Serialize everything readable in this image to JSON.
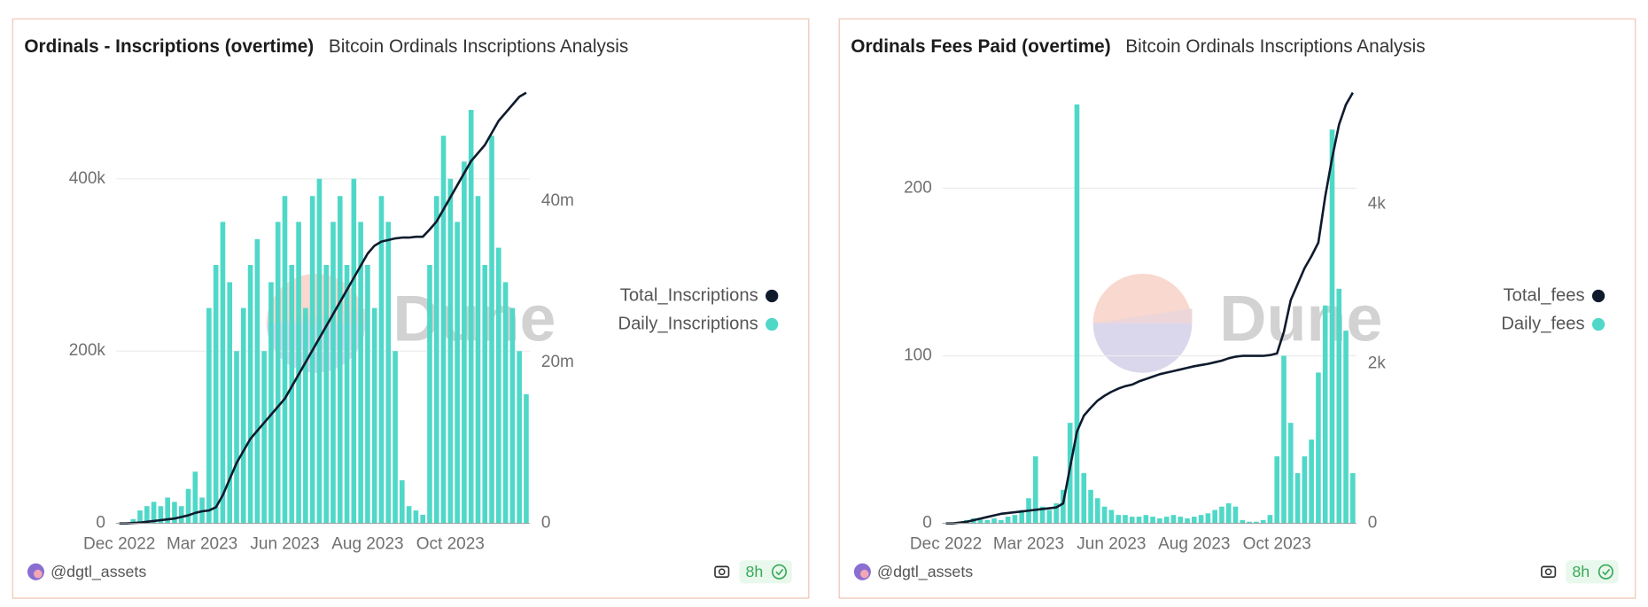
{
  "chart_data": [
    {
      "type": "combo",
      "title": "Ordinals - Inscriptions (overtime)",
      "subtitle": "Bitcoin Ordinals Inscriptions Analysis",
      "watermark": "Dune",
      "author": "@dgtl_assets",
      "updated": "8h",
      "legend": "right",
      "categories": [
        "Dec 2022",
        null,
        null,
        null,
        null,
        null,
        null,
        null,
        null,
        null,
        null,
        null,
        "Mar 2023",
        null,
        null,
        null,
        null,
        null,
        null,
        null,
        null,
        null,
        null,
        null,
        "Jun 2023",
        null,
        null,
        null,
        null,
        null,
        null,
        null,
        null,
        null,
        null,
        null,
        "Aug 2023",
        null,
        null,
        null,
        null,
        null,
        null,
        null,
        null,
        null,
        null,
        null,
        "Oct 2023",
        null,
        null,
        null,
        null,
        null,
        null,
        null,
        null,
        null,
        null,
        null
      ],
      "ylim": [
        0,
        500000
      ],
      "yticks": [
        0,
        {
          "value": 200000,
          "label": "200k"
        },
        {
          "value": 400000,
          "label": "400k"
        }
      ],
      "y2lim": [
        0,
        53500000
      ],
      "y2ticks": [
        0,
        {
          "value": 20000000,
          "label": "20m"
        },
        {
          "value": 40000000,
          "label": "40m"
        }
      ],
      "grid": true,
      "series": [
        {
          "name": "Total_Inscriptions",
          "type": "line",
          "axis": "y2",
          "color": "#0f1b2d",
          "values": [
            0,
            0,
            50000,
            100000,
            200000,
            300000,
            400000,
            500000,
            600000,
            800000,
            1000000,
            1300000,
            1500000,
            1600000,
            2000000,
            3500000,
            5500000,
            7500000,
            9000000,
            10500000,
            11500000,
            12500000,
            13500000,
            14500000,
            15500000,
            17000000,
            18500000,
            20000000,
            21500000,
            23000000,
            24500000,
            26000000,
            27500000,
            29000000,
            30500000,
            32000000,
            33500000,
            34500000,
            35000000,
            35200000,
            35400000,
            35500000,
            35500000,
            35600000,
            35600000,
            36500000,
            37500000,
            39000000,
            40500000,
            42000000,
            43500000,
            45000000,
            46000000,
            47000000,
            48500000,
            50000000,
            51000000,
            52000000,
            53000000,
            53500000
          ]
        },
        {
          "name": "Daily_Inscriptions",
          "type": "bar",
          "color": "#4fd8c8",
          "values": [
            0,
            0,
            5000,
            15000,
            20000,
            25000,
            20000,
            30000,
            25000,
            20000,
            40000,
            60000,
            30000,
            250000,
            300000,
            350000,
            280000,
            200000,
            250000,
            300000,
            330000,
            200000,
            280000,
            350000,
            380000,
            300000,
            350000,
            250000,
            380000,
            400000,
            300000,
            350000,
            380000,
            300000,
            400000,
            350000,
            300000,
            250000,
            380000,
            350000,
            200000,
            50000,
            20000,
            15000,
            10000,
            300000,
            380000,
            450000,
            400000,
            350000,
            420000,
            480000,
            380000,
            300000,
            450000,
            320000,
            280000,
            250000,
            200000,
            150000
          ]
        }
      ]
    },
    {
      "type": "combo",
      "title": "Ordinals Fees Paid (overtime)",
      "subtitle": "Bitcoin Ordinals Inscriptions Analysis",
      "watermark": "Dune",
      "author": "@dgtl_assets",
      "updated": "8h",
      "legend": "right",
      "categories": [
        "Dec 2022",
        null,
        null,
        null,
        null,
        null,
        null,
        null,
        null,
        null,
        null,
        null,
        "Mar 2023",
        null,
        null,
        null,
        null,
        null,
        null,
        null,
        null,
        null,
        null,
        null,
        "Jun 2023",
        null,
        null,
        null,
        null,
        null,
        null,
        null,
        null,
        null,
        null,
        null,
        "Aug 2023",
        null,
        null,
        null,
        null,
        null,
        null,
        null,
        null,
        null,
        null,
        null,
        "Oct 2023",
        null,
        null,
        null,
        null,
        null,
        null,
        null,
        null,
        null,
        null,
        null
      ],
      "ylim": [
        0,
        257
      ],
      "yticks": [
        0,
        100,
        200
      ],
      "y2lim": [
        0,
        5400
      ],
      "y2ticks": [
        0,
        {
          "value": 2000,
          "label": "2k"
        },
        {
          "value": 4000,
          "label": "4k"
        }
      ],
      "grid": true,
      "series": [
        {
          "name": "Total_fees",
          "type": "line",
          "axis": "y2",
          "color": "#0f1b2d",
          "values": [
            0,
            0,
            10,
            20,
            40,
            60,
            80,
            100,
            120,
            130,
            140,
            150,
            160,
            170,
            180,
            190,
            200,
            250,
            700,
            1150,
            1350,
            1450,
            1540,
            1600,
            1650,
            1690,
            1720,
            1740,
            1780,
            1810,
            1840,
            1870,
            1890,
            1910,
            1930,
            1950,
            1970,
            1985,
            2000,
            2020,
            2040,
            2070,
            2090,
            2100,
            2100,
            2100,
            2100,
            2110,
            2130,
            2400,
            2800,
            3000,
            3200,
            3350,
            3520,
            4100,
            4580,
            5000,
            5250,
            5400
          ]
        },
        {
          "name": "Daily_fees",
          "type": "bar",
          "color": "#4fd8c8",
          "values": [
            0,
            0,
            1,
            2,
            3,
            3,
            2,
            3,
            2,
            4,
            5,
            8,
            15,
            40,
            10,
            8,
            12,
            20,
            60,
            250,
            30,
            20,
            15,
            10,
            8,
            5,
            5,
            4,
            4,
            5,
            4,
            3,
            4,
            5,
            4,
            3,
            4,
            5,
            6,
            8,
            10,
            12,
            10,
            2,
            1,
            1,
            2,
            5,
            40,
            100,
            60,
            30,
            40,
            50,
            90,
            130,
            235,
            140,
            115,
            30
          ]
        }
      ]
    }
  ]
}
